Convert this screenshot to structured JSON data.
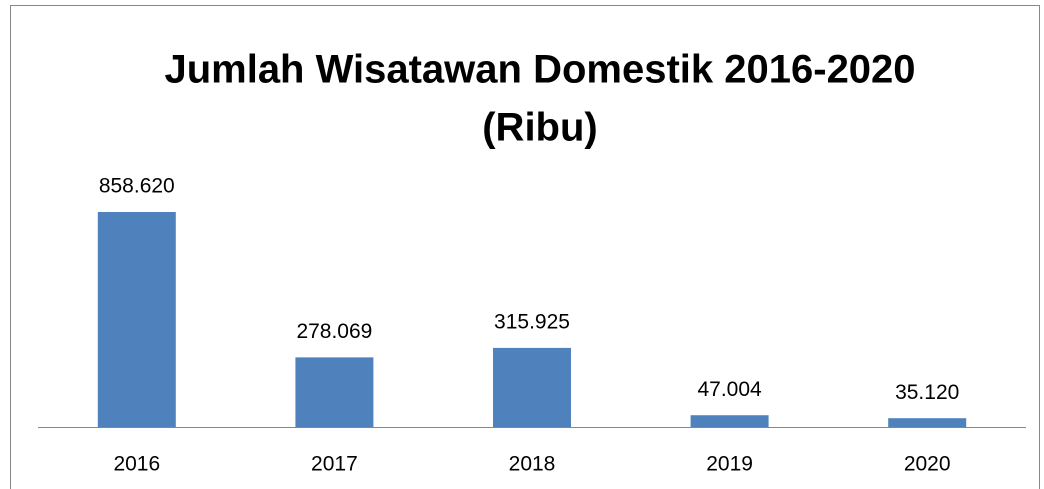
{
  "chart_data": {
    "type": "bar",
    "title": [
      "Jumlah Wisatawan Domestik 2016-2020",
      "(Ribu)"
    ],
    "categories": [
      "2016",
      "2017",
      "2018",
      "2019",
      "2020"
    ],
    "values": [
      858620,
      278069,
      315925,
      47004,
      35120
    ],
    "value_labels": [
      "858.620",
      "278.069",
      "315.925",
      "47.004",
      "35.120"
    ],
    "color": "#4f81bd"
  }
}
